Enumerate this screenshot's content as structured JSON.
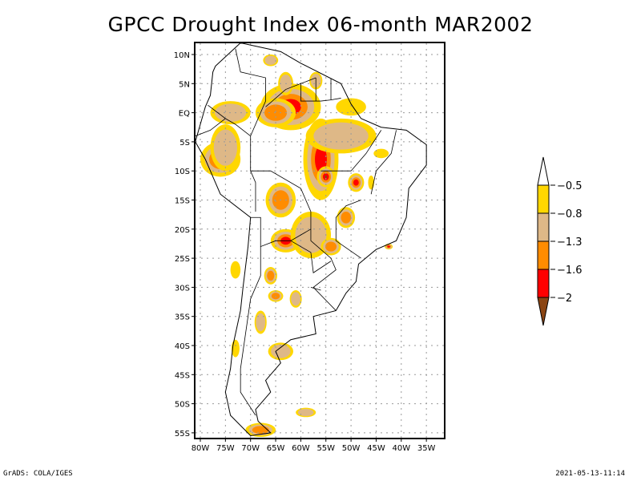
{
  "title": "GPCC Drought Index 06-month MAR2002",
  "footer": {
    "left": "GrADS: COLA/IGES",
    "right": "2021-05-13-11:14"
  },
  "chart_data": {
    "type": "heatmap",
    "title": "GPCC Drought Index 06-month MAR2002",
    "xlim": [
      -81,
      -32
    ],
    "ylim": [
      -56,
      12
    ],
    "x_ticks": [
      {
        "v": -80,
        "label": "80W"
      },
      {
        "v": -75,
        "label": "75W"
      },
      {
        "v": -70,
        "label": "70W"
      },
      {
        "v": -65,
        "label": "65W"
      },
      {
        "v": -60,
        "label": "60W"
      },
      {
        "v": -55,
        "label": "55W"
      },
      {
        "v": -50,
        "label": "50W"
      },
      {
        "v": -45,
        "label": "45W"
      },
      {
        "v": -40,
        "label": "40W"
      },
      {
        "v": -35,
        "label": "35W"
      }
    ],
    "y_ticks": [
      {
        "v": 10,
        "label": "10N"
      },
      {
        "v": 5,
        "label": "5N"
      },
      {
        "v": 0,
        "label": "EQ"
      },
      {
        "v": -5,
        "label": "5S"
      },
      {
        "v": -10,
        "label": "10S"
      },
      {
        "v": -15,
        "label": "15S"
      },
      {
        "v": -20,
        "label": "20S"
      },
      {
        "v": -25,
        "label": "25S"
      },
      {
        "v": -30,
        "label": "30S"
      },
      {
        "v": -35,
        "label": "35S"
      },
      {
        "v": -40,
        "label": "40S"
      },
      {
        "v": -45,
        "label": "45S"
      },
      {
        "v": -50,
        "label": "50S"
      },
      {
        "v": -55,
        "label": "55S"
      }
    ],
    "grid": true,
    "legend": {
      "placement": "right",
      "levels": [
        "-0.5",
        "-0.8",
        "-1.3",
        "-1.6",
        "-2"
      ],
      "bins": [
        {
          "range": "> -0.5",
          "color": "#ffffff"
        },
        {
          "range": "-0.8 to -0.5",
          "color": "#ffd700"
        },
        {
          "range": "-1.3 to -0.8",
          "color": "#deb887"
        },
        {
          "range": "-1.6 to -1.3",
          "color": "#ff8c00"
        },
        {
          "range": "-2 to -1.6",
          "color": "#ff0000"
        },
        {
          "range": "< -2",
          "color": "#8b4513"
        }
      ]
    },
    "anomalies": [
      {
        "lon": -62,
        "lat": 1,
        "rx": 6,
        "ry": 4,
        "level": 4
      },
      {
        "lon": -65,
        "lat": 0,
        "rx": 4,
        "ry": 2.5,
        "level": 3
      },
      {
        "lon": -56,
        "lat": -8,
        "rx": 3.5,
        "ry": 7,
        "level": 4
      },
      {
        "lon": -55,
        "lat": -11,
        "rx": 1.8,
        "ry": 1.8,
        "level": 5
      },
      {
        "lon": -52,
        "lat": -4,
        "rx": 7,
        "ry": 3,
        "level": 2
      },
      {
        "lon": -76,
        "lat": -8,
        "rx": 4,
        "ry": 3,
        "level": 3
      },
      {
        "lon": -75,
        "lat": -6,
        "rx": 3,
        "ry": 4,
        "level": 2
      },
      {
        "lon": -74,
        "lat": 0,
        "rx": 4,
        "ry": 2,
        "level": 2
      },
      {
        "lon": -64,
        "lat": -15,
        "rx": 3,
        "ry": 3,
        "level": 3
      },
      {
        "lon": -63,
        "lat": -22,
        "rx": 3,
        "ry": 2,
        "level": 4
      },
      {
        "lon": -58,
        "lat": -21,
        "rx": 4,
        "ry": 4,
        "level": 2
      },
      {
        "lon": -54,
        "lat": -23,
        "rx": 2,
        "ry": 1.5,
        "level": 3
      },
      {
        "lon": -51,
        "lat": -18,
        "rx": 1.8,
        "ry": 1.8,
        "level": 3
      },
      {
        "lon": -49,
        "lat": -12,
        "rx": 1.6,
        "ry": 1.6,
        "level": 4
      },
      {
        "lon": -66,
        "lat": -28,
        "rx": 1.3,
        "ry": 1.5,
        "level": 3
      },
      {
        "lon": -65,
        "lat": -31.5,
        "rx": 1.5,
        "ry": 1,
        "level": 3
      },
      {
        "lon": -61,
        "lat": -32,
        "rx": 1.2,
        "ry": 1.5,
        "level": 2
      },
      {
        "lon": -68,
        "lat": -36,
        "rx": 1.2,
        "ry": 2,
        "level": 2
      },
      {
        "lon": -64,
        "lat": -41,
        "rx": 2.5,
        "ry": 1.5,
        "level": 2
      },
      {
        "lon": -59,
        "lat": -51.5,
        "rx": 2,
        "ry": 0.8,
        "level": 2
      },
      {
        "lon": -68,
        "lat": -54.5,
        "rx": 3,
        "ry": 1.2,
        "level": 3
      },
      {
        "lon": -50,
        "lat": 1,
        "rx": 3,
        "ry": 1.5,
        "level": 1
      },
      {
        "lon": -57,
        "lat": 5.5,
        "rx": 1.3,
        "ry": 1.5,
        "level": 2
      },
      {
        "lon": -63,
        "lat": 5,
        "rx": 1.5,
        "ry": 2,
        "level": 2
      },
      {
        "lon": -66,
        "lat": 9,
        "rx": 1.5,
        "ry": 1,
        "level": 2
      },
      {
        "lon": -73,
        "lat": -27,
        "rx": 1,
        "ry": 1.5,
        "level": 1
      },
      {
        "lon": -73,
        "lat": -40.5,
        "rx": 0.8,
        "ry": 1.5,
        "level": 1
      },
      {
        "lon": -42.5,
        "lat": -23,
        "rx": 0.8,
        "ry": 0.5,
        "level": 4
      },
      {
        "lon": -46,
        "lat": -12,
        "rx": 0.6,
        "ry": 1.2,
        "level": 1
      },
      {
        "lon": -44,
        "lat": -7,
        "rx": 1.5,
        "ry": 0.8,
        "level": 1
      }
    ]
  }
}
